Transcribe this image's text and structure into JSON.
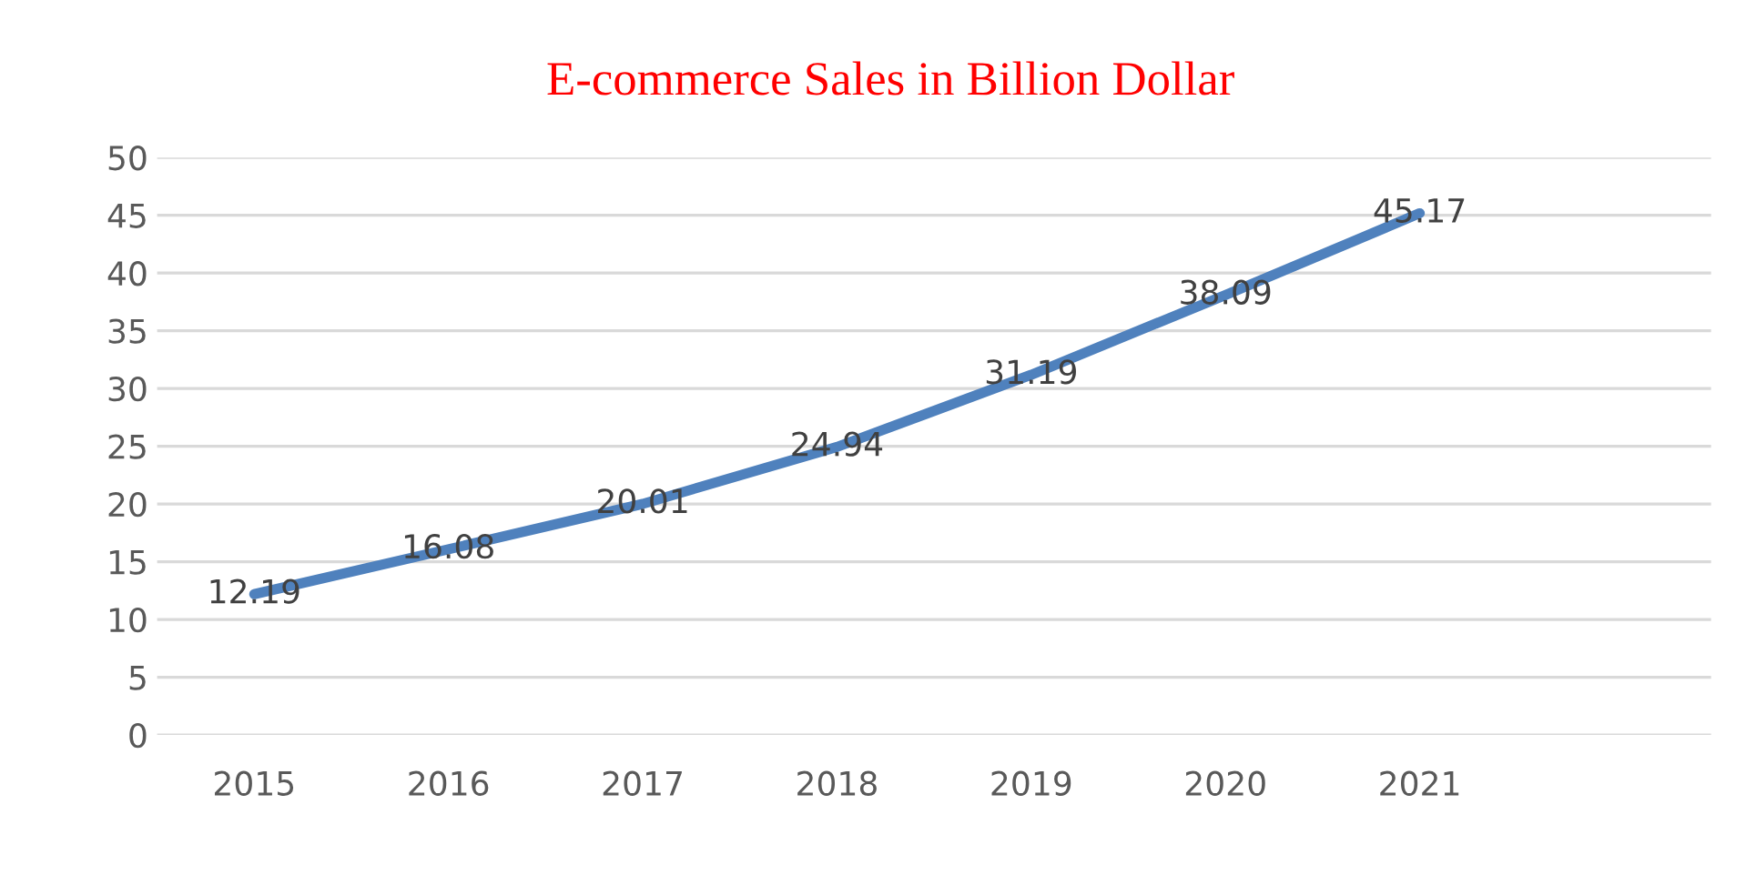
{
  "chart_data": {
    "type": "line",
    "title": "E-commerce Sales in Billion Dollar",
    "categories": [
      "2015",
      "2016",
      "2017",
      "2018",
      "2019",
      "2020",
      "2021",
      null
    ],
    "series": [
      {
        "color": "#4f81bd",
        "values": [
          12.19,
          16.08,
          20.01,
          24.94,
          31.19,
          38.09,
          45.17,
          null
        ]
      }
    ],
    "ylim": [
      0,
      50
    ],
    "yticks": [
      0,
      5,
      10,
      15,
      20,
      25,
      30,
      35,
      40,
      45,
      50
    ],
    "grid": "y",
    "data_labels": true,
    "marker": "none",
    "line_style": "solid"
  }
}
